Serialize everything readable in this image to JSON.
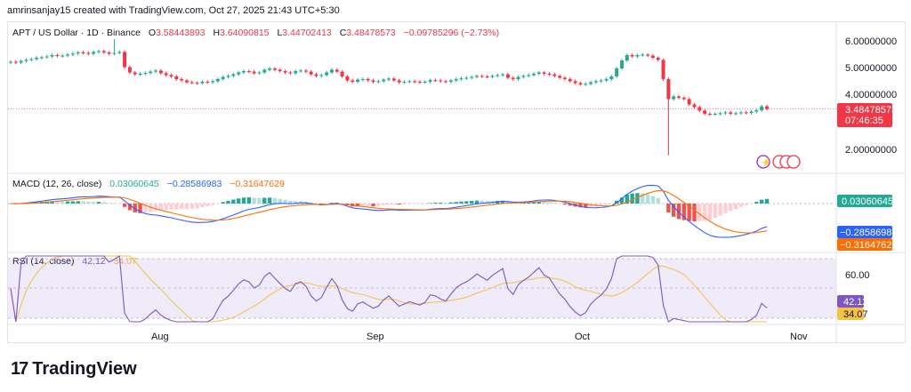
{
  "header": {
    "attribution": "amrinsanjay15 created with TradingView.com, Oct 27, 2025 21:43 UTC+5:30"
  },
  "price_legend": {
    "symbol": "APT / US Dollar · 1D · Binance",
    "o_label": "O",
    "o": "3.58443893",
    "h_label": "H",
    "h": "3.64090815",
    "l_label": "L",
    "l": "3.44702413",
    "c_label": "C",
    "c": "3.48478573",
    "change": "−0.09785296 (−2.73%)"
  },
  "macd_legend": {
    "title": "MACD (12, 26, close)",
    "hist": "0.03060645",
    "macd": "−0.28586983",
    "signal": "−0.31647629"
  },
  "rsi_legend": {
    "title": "RSI (14, close)",
    "rsi": "42.12",
    "ma": "34.07"
  },
  "price_axis": {
    "ticks": [
      "6.00000000",
      "5.00000000",
      "4.00000000",
      "2.00000000"
    ],
    "last": "3.48478573",
    "countdown": "07:46:35"
  },
  "macd_axis": {
    "hist_label": "0.03060645",
    "macd_label": "−0.28586983",
    "signal_label": "−0.31647629"
  },
  "rsi_axis": {
    "tick": "60.00",
    "rsi_label": "42.12",
    "ma_label": "34.07"
  },
  "time_axis": [
    "Aug",
    "Sep",
    "Oct",
    "Nov"
  ],
  "brand": {
    "name": "TradingView"
  },
  "colors": {
    "up": "#22ab94",
    "down": "#f23645",
    "macd": "#2962ff",
    "signal": "#ff6d00",
    "rsi": "#7e57c2",
    "rsi_ma": "#f5c242",
    "hist_up": "#26a69a",
    "hist_down": "#ef5350"
  },
  "chart_data": {
    "type": "candlestick",
    "close": [
      5.25,
      5.22,
      5.28,
      5.32,
      5.35,
      5.4,
      5.42,
      5.45,
      5.5,
      5.47,
      5.48,
      5.52,
      5.56,
      5.6,
      5.58,
      5.55,
      5.62,
      5.65,
      5.6,
      5.55,
      5.58,
      5.62,
      5.05,
      4.85,
      4.78,
      4.8,
      4.83,
      4.88,
      4.92,
      4.82,
      4.75,
      4.7,
      4.6,
      4.55,
      4.48,
      4.46,
      4.45,
      4.5,
      4.48,
      4.52,
      4.6,
      4.68,
      4.72,
      4.78,
      4.85,
      4.9,
      4.88,
      4.82,
      4.85,
      4.95,
      5.0,
      4.95,
      4.9,
      4.85,
      4.82,
      4.9,
      4.92,
      4.88,
      4.78,
      4.72,
      4.75,
      4.85,
      4.95,
      4.88,
      4.7,
      4.55,
      4.5,
      4.58,
      4.6,
      4.55,
      4.5,
      4.52,
      4.58,
      4.62,
      4.55,
      4.48,
      4.5,
      4.52,
      4.5,
      4.48,
      4.5,
      4.56,
      4.55,
      4.52,
      4.5,
      4.55,
      4.6,
      4.63,
      4.65,
      4.68,
      4.72,
      4.7,
      4.68,
      4.72,
      4.75,
      4.78,
      4.65,
      4.6,
      4.68,
      4.72,
      4.75,
      4.8,
      4.85,
      4.8,
      4.78,
      4.72,
      4.65,
      4.6,
      4.52,
      4.45,
      4.4,
      4.42,
      4.48,
      4.52,
      4.55,
      4.6,
      4.7,
      5.0,
      5.3,
      5.5,
      5.45,
      5.5,
      5.52,
      5.48,
      5.4,
      5.32,
      4.6,
      3.85,
      3.95,
      3.9,
      3.85,
      3.65,
      3.55,
      3.42,
      3.3,
      3.28,
      3.3,
      3.32,
      3.35,
      3.3,
      3.32,
      3.35,
      3.33,
      3.38,
      3.43,
      3.58,
      3.48
    ],
    "x_ticks": [
      "Aug",
      "Sep",
      "Oct",
      "Nov"
    ],
    "y_ticks": [
      6.0,
      5.0,
      4.0,
      2.0
    ],
    "ylim": [
      1.6,
      6.3
    ],
    "last_close": 3.48478573
  }
}
